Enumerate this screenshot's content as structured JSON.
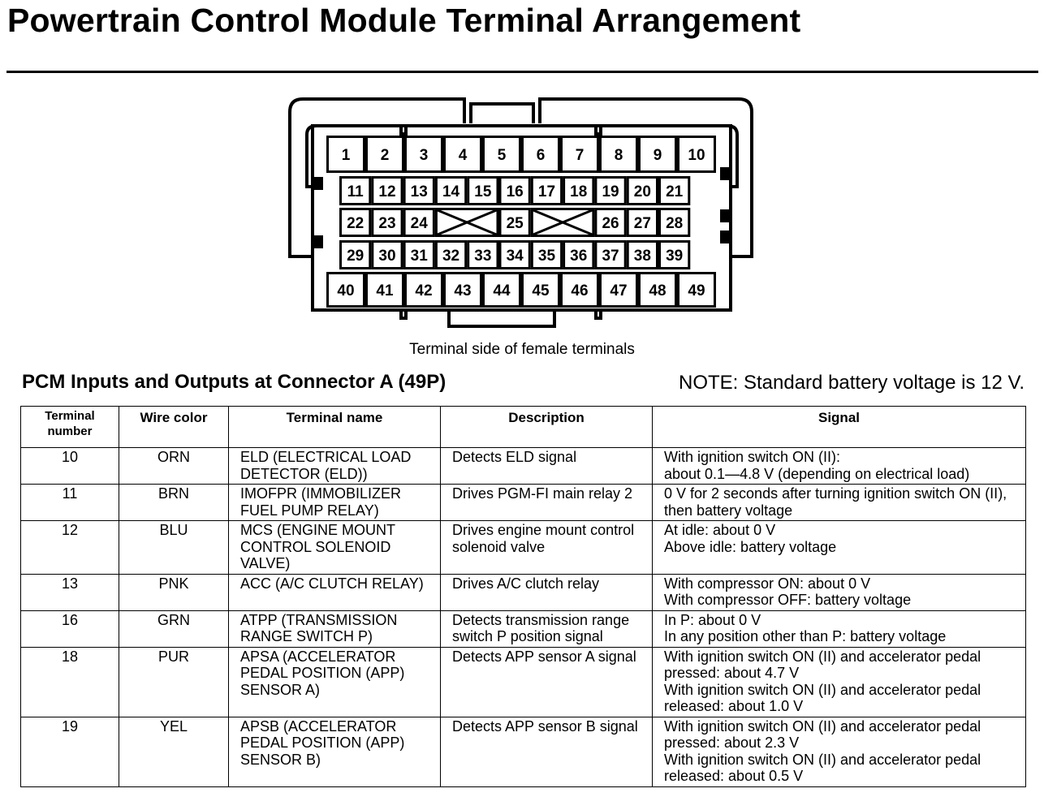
{
  "title": "Powertrain Control Module Terminal Arrangement",
  "connector": {
    "caption": "Terminal side of female terminals",
    "rows": [
      [
        "1",
        "2",
        "3",
        "4",
        "5",
        "6",
        "7",
        "8",
        "9",
        "10"
      ],
      [
        "11",
        "12",
        "13",
        "14",
        "15",
        "16",
        "17",
        "18",
        "19",
        "20",
        "21"
      ],
      [
        "22",
        "23",
        "24",
        null,
        null,
        "25",
        null,
        null,
        "26",
        "27",
        "28"
      ],
      [
        "29",
        "30",
        "31",
        "32",
        "33",
        "34",
        "35",
        "36",
        "37",
        "38",
        "39"
      ],
      [
        "40",
        "41",
        "42",
        "43",
        "44",
        "45",
        "46",
        "47",
        "48",
        "49"
      ]
    ]
  },
  "section_title": "PCM Inputs and Outputs at Connector A (49P)",
  "note": "NOTE: Standard battery voltage is 12 V.",
  "table": {
    "headers": [
      "Terminal number",
      "Wire color",
      "Terminal name",
      "Description",
      "Signal"
    ],
    "rows": [
      {
        "terminal": "10",
        "wire": "ORN",
        "name": "ELD (ELECTRICAL LOAD DETECTOR (ELD))",
        "description": "Detects ELD signal",
        "signal": [
          "With ignition switch ON (II):",
          "about 0.1—4.8 V (depending on electrical load)"
        ]
      },
      {
        "terminal": "11",
        "wire": "BRN",
        "name": "IMOFPR (IMMOBILIZER FUEL PUMP RELAY)",
        "description": "Drives PGM-FI main relay 2",
        "signal": [
          "0 V for 2 seconds after turning ignition switch ON (II), then battery voltage"
        ]
      },
      {
        "terminal": "12",
        "wire": "BLU",
        "name": "MCS (ENGINE MOUNT CONTROL SOLENOID VALVE)",
        "description": "Drives engine mount control solenoid valve",
        "signal": [
          "At idle: about 0 V",
          "Above idle: battery voltage"
        ]
      },
      {
        "terminal": "13",
        "wire": "PNK",
        "name": "ACC (A/C CLUTCH RELAY)",
        "description": "Drives A/C clutch relay",
        "signal": [
          "With compressor ON: about 0 V",
          "With compressor OFF: battery voltage"
        ]
      },
      {
        "terminal": "16",
        "wire": "GRN",
        "name": "ATPP (TRANSMISSION RANGE SWITCH P)",
        "description": "Detects transmission range switch P position signal",
        "signal": [
          "In P: about 0 V",
          "In any position other than P: battery voltage"
        ]
      },
      {
        "terminal": "18",
        "wire": "PUR",
        "name": "APSA (ACCELERATOR PEDAL POSITION (APP) SENSOR A)",
        "description": "Detects APP sensor A signal",
        "signal": [
          "With ignition switch ON (II) and accelerator pedal pressed: about 4.7 V",
          "With ignition switch ON (II) and accelerator pedal released: about 1.0 V"
        ]
      },
      {
        "terminal": "19",
        "wire": "YEL",
        "name": "APSB (ACCELERATOR PEDAL POSITION (APP) SENSOR B)",
        "description": "Detects APP sensor B signal",
        "signal": [
          "With ignition switch ON (II) and accelerator pedal pressed: about 2.3 V",
          "With ignition switch ON (II) and accelerator pedal released: about 0.5 V"
        ]
      }
    ]
  }
}
